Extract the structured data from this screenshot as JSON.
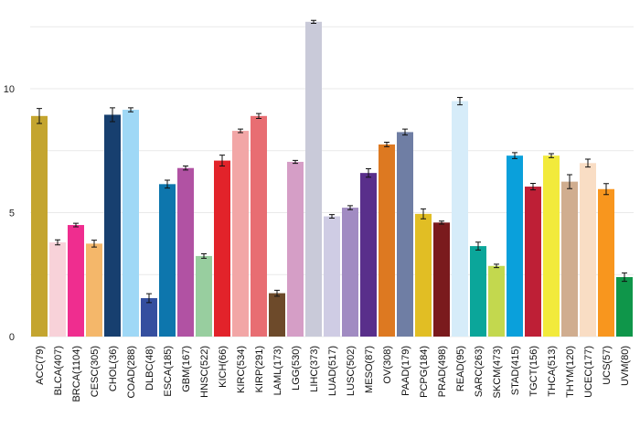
{
  "chart_data": {
    "type": "bar",
    "title": "",
    "xlabel": "",
    "ylabel": "",
    "ylim": [
      0,
      12.8
    ],
    "yticks": [
      0,
      5,
      10
    ],
    "grid": true,
    "legend": "none",
    "categories": [
      "ACC(79)",
      "BLCA(407)",
      "BRCA(1104)",
      "CESC(305)",
      "CHOL(36)",
      "COAD(288)",
      "DLBC(48)",
      "ESCA(185)",
      "GBM(167)",
      "HNSC(522)",
      "KICH(66)",
      "KIRC(534)",
      "KIRP(291)",
      "LAML(173)",
      "LGG(530)",
      "LIHC(373)",
      "LUAD(517)",
      "LUSC(502)",
      "MESO(87)",
      "OV(308)",
      "PAAD(179)",
      "PCPG(184)",
      "PRAD(498)",
      "READ(95)",
      "SARC(263)",
      "SKCM(473)",
      "STAD(415)",
      "TGCT(156)",
      "THCA(513)",
      "THYM(120)",
      "UCEC(177)",
      "UCS(57)",
      "UVM(80)"
    ],
    "values": [
      8.9,
      3.8,
      4.5,
      3.75,
      8.95,
      9.15,
      1.55,
      6.15,
      6.8,
      3.25,
      7.1,
      8.3,
      8.9,
      1.75,
      7.05,
      12.7,
      4.85,
      5.2,
      6.6,
      7.75,
      8.25,
      4.95,
      4.6,
      9.5,
      3.65,
      2.85,
      7.3,
      6.05,
      7.3,
      6.25,
      7.0,
      5.95,
      2.4
    ],
    "errors": [
      0.3,
      0.1,
      0.07,
      0.14,
      0.28,
      0.08,
      0.18,
      0.16,
      0.08,
      0.09,
      0.22,
      0.07,
      0.1,
      0.12,
      0.06,
      0.06,
      0.07,
      0.08,
      0.17,
      0.09,
      0.12,
      0.2,
      0.06,
      0.15,
      0.16,
      0.07,
      0.12,
      0.13,
      0.08,
      0.28,
      0.16,
      0.22,
      0.17
    ],
    "colors": [
      "#c4a52f",
      "#f8d2d9",
      "#ef2d8f",
      "#f4b76a",
      "#173f6f",
      "#9fd8f6",
      "#354f9f",
      "#0d76ad",
      "#b152a3",
      "#98ce9f",
      "#e2232a",
      "#f2a6a6",
      "#e86d72",
      "#6d4a2a",
      "#d59ec6",
      "#c9cad9",
      "#cfcce4",
      "#a18bc2",
      "#592f8b",
      "#dd7921",
      "#6f7ea4",
      "#e1be24",
      "#7a1a1d",
      "#d6ecf9",
      "#0ba69a",
      "#c3d84e",
      "#0aa0db",
      "#be1f36",
      "#f2ea3b",
      "#d0ad8f",
      "#f9ddc4",
      "#f8961e",
      "#0f964a"
    ]
  }
}
